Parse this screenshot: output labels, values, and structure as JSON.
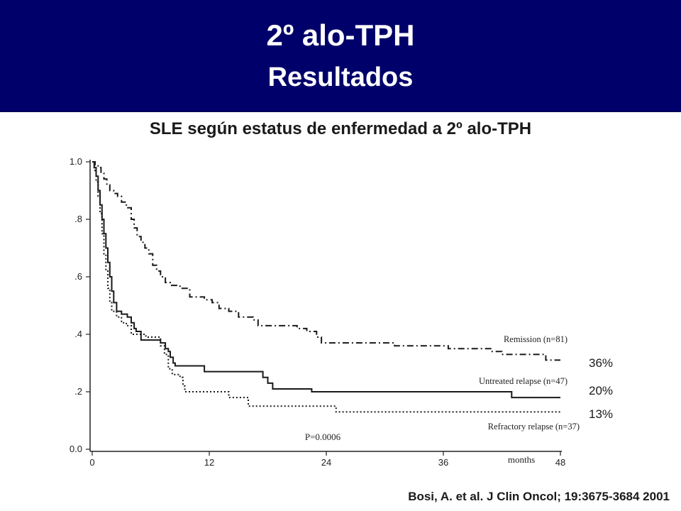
{
  "header": {
    "title": "2º alo-TPH",
    "subtitle": "Resultados",
    "background": "#00006a"
  },
  "chart_title": "SLE según estatus de enfermedad a 2º alo-TPH",
  "citation": "Bosi, A. et al. J Clin Oncol; 19:3675-3684 2001",
  "chart_data": {
    "type": "line",
    "title": "SLE según estatus de enfermedad a 2º alo-TPH",
    "xlabel": "months",
    "ylabel": "",
    "xlim": [
      0,
      48
    ],
    "ylim": [
      0,
      1.0
    ],
    "x_ticks": [
      0,
      12,
      24,
      36,
      48
    ],
    "y_ticks": [
      {
        "value": 0.0,
        "label": "0.0"
      },
      {
        "value": 0.2,
        "label": ".2"
      },
      {
        "value": 0.4,
        "label": ".4"
      },
      {
        "value": 0.6,
        "label": ".6"
      },
      {
        "value": 0.8,
        "label": ".8"
      },
      {
        "value": 1.0,
        "label": "1.0"
      }
    ],
    "grid": false,
    "step": true,
    "pvalue": "P=0.0006",
    "series": [
      {
        "name": "Remission (n=81)",
        "style": "dashdot",
        "end_label": "36%",
        "points": [
          [
            0,
            1.0
          ],
          [
            0.3,
            0.99
          ],
          [
            0.6,
            0.98
          ],
          [
            0.9,
            0.96
          ],
          [
            1.2,
            0.94
          ],
          [
            1.5,
            0.92
          ],
          [
            1.8,
            0.9
          ],
          [
            2.2,
            0.89
          ],
          [
            2.6,
            0.88
          ],
          [
            3.0,
            0.86
          ],
          [
            3.5,
            0.84
          ],
          [
            4.0,
            0.8
          ],
          [
            4.3,
            0.77
          ],
          [
            4.6,
            0.74
          ],
          [
            5.0,
            0.72
          ],
          [
            5.4,
            0.7
          ],
          [
            5.8,
            0.68
          ],
          [
            6.2,
            0.64
          ],
          [
            6.6,
            0.62
          ],
          [
            7.0,
            0.6
          ],
          [
            7.5,
            0.58
          ],
          [
            8.0,
            0.57
          ],
          [
            9.0,
            0.56
          ],
          [
            10.0,
            0.53
          ],
          [
            11.5,
            0.52
          ],
          [
            12.0,
            0.52
          ],
          [
            12.3,
            0.51
          ],
          [
            13.0,
            0.49
          ],
          [
            14.0,
            0.48
          ],
          [
            15.0,
            0.46
          ],
          [
            16.5,
            0.45
          ],
          [
            17.0,
            0.43
          ],
          [
            19.0,
            0.43
          ],
          [
            21.0,
            0.42
          ],
          [
            22.0,
            0.41
          ],
          [
            23.0,
            0.39
          ],
          [
            23.5,
            0.37
          ],
          [
            26.0,
            0.37
          ],
          [
            30.0,
            0.37
          ],
          [
            31.0,
            0.36
          ],
          [
            35.0,
            0.36
          ],
          [
            36.5,
            0.35
          ],
          [
            39.0,
            0.35
          ],
          [
            41.0,
            0.34
          ],
          [
            42.0,
            0.33
          ],
          [
            46.0,
            0.33
          ],
          [
            46.5,
            0.31
          ],
          [
            48.0,
            0.31
          ]
        ]
      },
      {
        "name": "Untreated relapse (n=47)",
        "style": "solid",
        "end_label": "20%",
        "points": [
          [
            0,
            1.0
          ],
          [
            0.2,
            0.98
          ],
          [
            0.4,
            0.95
          ],
          [
            0.6,
            0.9
          ],
          [
            0.8,
            0.85
          ],
          [
            1.0,
            0.8
          ],
          [
            1.2,
            0.75
          ],
          [
            1.4,
            0.7
          ],
          [
            1.6,
            0.65
          ],
          [
            1.8,
            0.6
          ],
          [
            2.0,
            0.55
          ],
          [
            2.2,
            0.51
          ],
          [
            2.5,
            0.48
          ],
          [
            3.0,
            0.47
          ],
          [
            3.6,
            0.46
          ],
          [
            4.0,
            0.44
          ],
          [
            4.3,
            0.42
          ],
          [
            4.5,
            0.41
          ],
          [
            5.0,
            0.38
          ],
          [
            6.0,
            0.38
          ],
          [
            7.0,
            0.37
          ],
          [
            7.5,
            0.35
          ],
          [
            7.8,
            0.34
          ],
          [
            8.0,
            0.32
          ],
          [
            8.3,
            0.3
          ],
          [
            8.5,
            0.29
          ],
          [
            11.0,
            0.29
          ],
          [
            11.5,
            0.27
          ],
          [
            17.0,
            0.27
          ],
          [
            17.5,
            0.25
          ],
          [
            18.0,
            0.23
          ],
          [
            18.5,
            0.21
          ],
          [
            22.0,
            0.21
          ],
          [
            22.5,
            0.2
          ],
          [
            42.5,
            0.2
          ],
          [
            43.0,
            0.18
          ],
          [
            48.0,
            0.18
          ]
        ]
      },
      {
        "name": "Refractory relapse (n=37)",
        "style": "dotted",
        "end_label": "13%",
        "points": [
          [
            0,
            1.0
          ],
          [
            0.2,
            0.97
          ],
          [
            0.4,
            0.93
          ],
          [
            0.6,
            0.88
          ],
          [
            0.8,
            0.82
          ],
          [
            1.0,
            0.75
          ],
          [
            1.2,
            0.68
          ],
          [
            1.4,
            0.62
          ],
          [
            1.6,
            0.56
          ],
          [
            1.8,
            0.51
          ],
          [
            2.0,
            0.48
          ],
          [
            2.5,
            0.46
          ],
          [
            3.0,
            0.44
          ],
          [
            3.5,
            0.43
          ],
          [
            4.0,
            0.4
          ],
          [
            4.5,
            0.4
          ],
          [
            5.0,
            0.4
          ],
          [
            5.5,
            0.39
          ],
          [
            6.0,
            0.39
          ],
          [
            6.8,
            0.39
          ],
          [
            7.0,
            0.36
          ],
          [
            7.4,
            0.33
          ],
          [
            7.8,
            0.28
          ],
          [
            8.2,
            0.26
          ],
          [
            9.0,
            0.25
          ],
          [
            9.3,
            0.22
          ],
          [
            9.5,
            0.2
          ],
          [
            13.5,
            0.2
          ],
          [
            14.0,
            0.18
          ],
          [
            15.5,
            0.18
          ],
          [
            16.0,
            0.15
          ],
          [
            24.5,
            0.15
          ],
          [
            25.0,
            0.13
          ],
          [
            48.0,
            0.13
          ]
        ]
      }
    ]
  }
}
